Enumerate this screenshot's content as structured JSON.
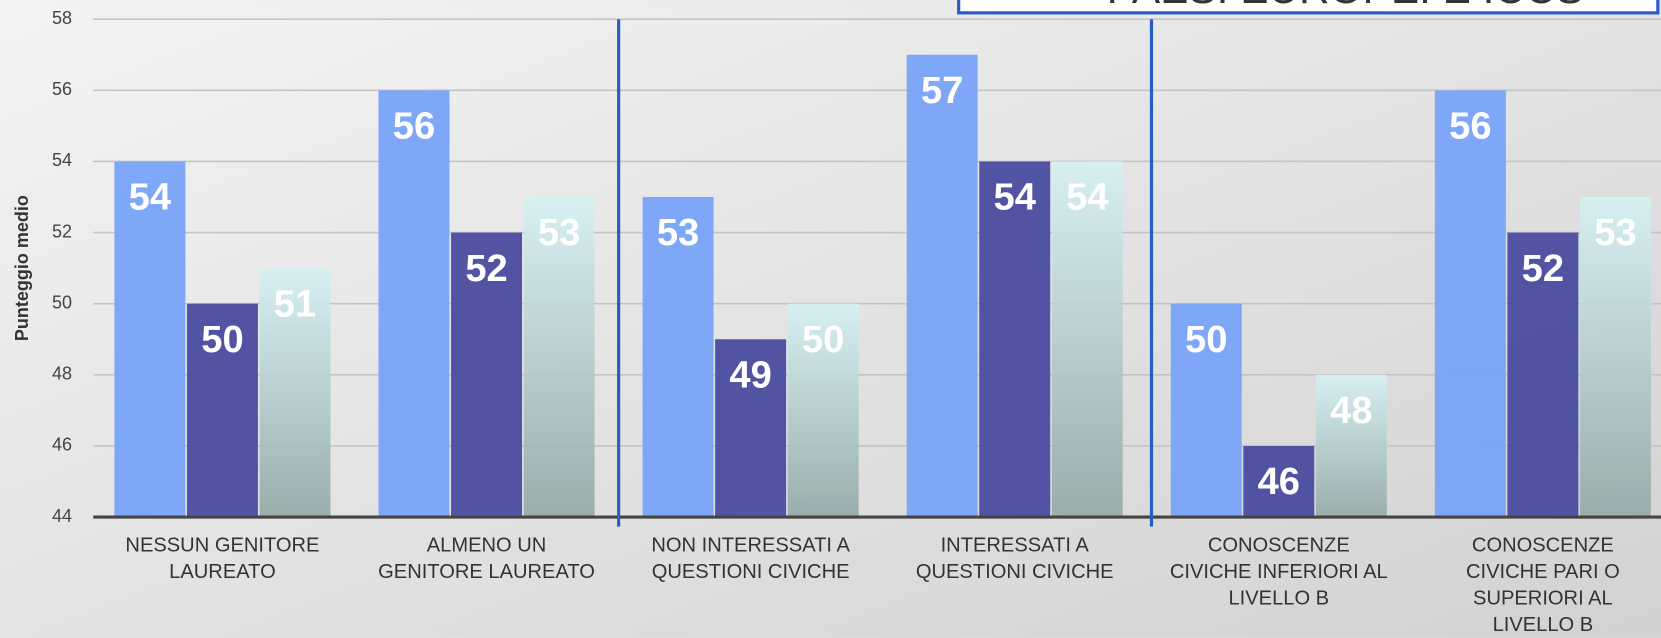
{
  "chart_data": {
    "type": "bar",
    "title": "PAESI EUROPEI E ICCS",
    "y_label": "Punteggio medio",
    "categories": [
      "NESSUN GENITORE\nLAUREATO",
      "ALMENO UN\nGENITORE LAUREATO",
      "NON INTERESSATI A\nQUESTIONI CIVICHE",
      "INTERESSATI A\nQUESTIONI CIVICHE",
      "CONOSCENZE\nCIVICHE INFERIORI AL\nLIVELLO B",
      "CONOSCENZE\nCIVICHE PARI O\nSUPERIORI AL\nLIVELLO B"
    ],
    "series": [
      {
        "color": "#78a4f8",
        "values": [
          54,
          56,
          53,
          57,
          50,
          56
        ]
      },
      {
        "color": "#4b4ba0",
        "values": [
          50,
          52,
          49,
          54,
          46,
          52
        ]
      },
      {
        "color": "#c4e0e2",
        "values": [
          51,
          53,
          50,
          54,
          48,
          53
        ]
      }
    ],
    "ylim": [
      44,
      58
    ],
    "yticks": [
      44,
      46,
      48,
      50,
      52,
      54,
      56,
      58
    ],
    "grid": true
  }
}
